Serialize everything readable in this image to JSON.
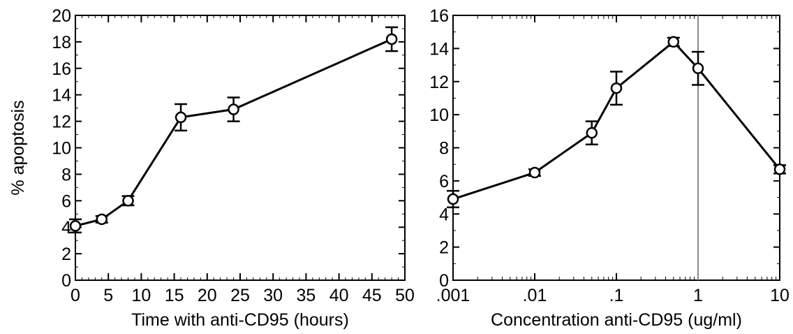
{
  "chart_data": [
    {
      "type": "line",
      "xlabel": "Time with anti-CD95 (hours)",
      "ylabel": "% apoptosis",
      "xlim": [
        0,
        50
      ],
      "ylim": [
        0,
        20
      ],
      "xticks": [
        0,
        5,
        10,
        15,
        20,
        25,
        30,
        35,
        40,
        45,
        50
      ],
      "xtick_labels": [
        "0",
        "5",
        "10",
        "15",
        "20",
        "25",
        "30",
        "35",
        "40",
        "45",
        "50"
      ],
      "yticks": [
        0,
        2,
        4,
        6,
        8,
        10,
        12,
        14,
        16,
        18,
        20
      ],
      "ytick_labels": [
        "0",
        "2",
        "4",
        "6",
        "8",
        "10",
        "12",
        "14",
        "16",
        "18",
        "20"
      ],
      "grid": false,
      "series": [
        {
          "marker": "open-circle",
          "color": "#000000",
          "x": [
            0,
            4,
            8,
            16,
            24,
            48
          ],
          "y": [
            4.1,
            4.6,
            6.0,
            12.3,
            12.9,
            18.2
          ],
          "error": [
            0.5,
            0.25,
            0.35,
            1.0,
            0.9,
            0.9
          ]
        }
      ]
    },
    {
      "type": "line",
      "xlabel": "Concentration anti-CD95 (ug/ml)",
      "xscale": "log",
      "xlim": [
        0.001,
        10
      ],
      "ylim": [
        0,
        16
      ],
      "xticks": [
        0.001,
        0.01,
        0.1,
        1,
        10
      ],
      "xtick_labels": [
        ".001",
        ".01",
        ".1",
        "1",
        "10"
      ],
      "yticks": [
        0,
        2,
        4,
        6,
        8,
        10,
        12,
        14,
        16
      ],
      "ytick_labels": [
        "0",
        "2",
        "4",
        "6",
        "8",
        "10",
        "12",
        "14",
        "16"
      ],
      "grid": false,
      "reference_line_x": 1,
      "series": [
        {
          "marker": "open-circle",
          "color": "#000000",
          "x": [
            0.001,
            0.01,
            0.05,
            0.1,
            0.5,
            1,
            10
          ],
          "y": [
            4.9,
            6.5,
            8.9,
            11.6,
            14.4,
            12.8,
            6.7
          ],
          "error": [
            0.5,
            0.2,
            0.7,
            1.0,
            0.25,
            1.0,
            0.25
          ]
        }
      ]
    }
  ]
}
